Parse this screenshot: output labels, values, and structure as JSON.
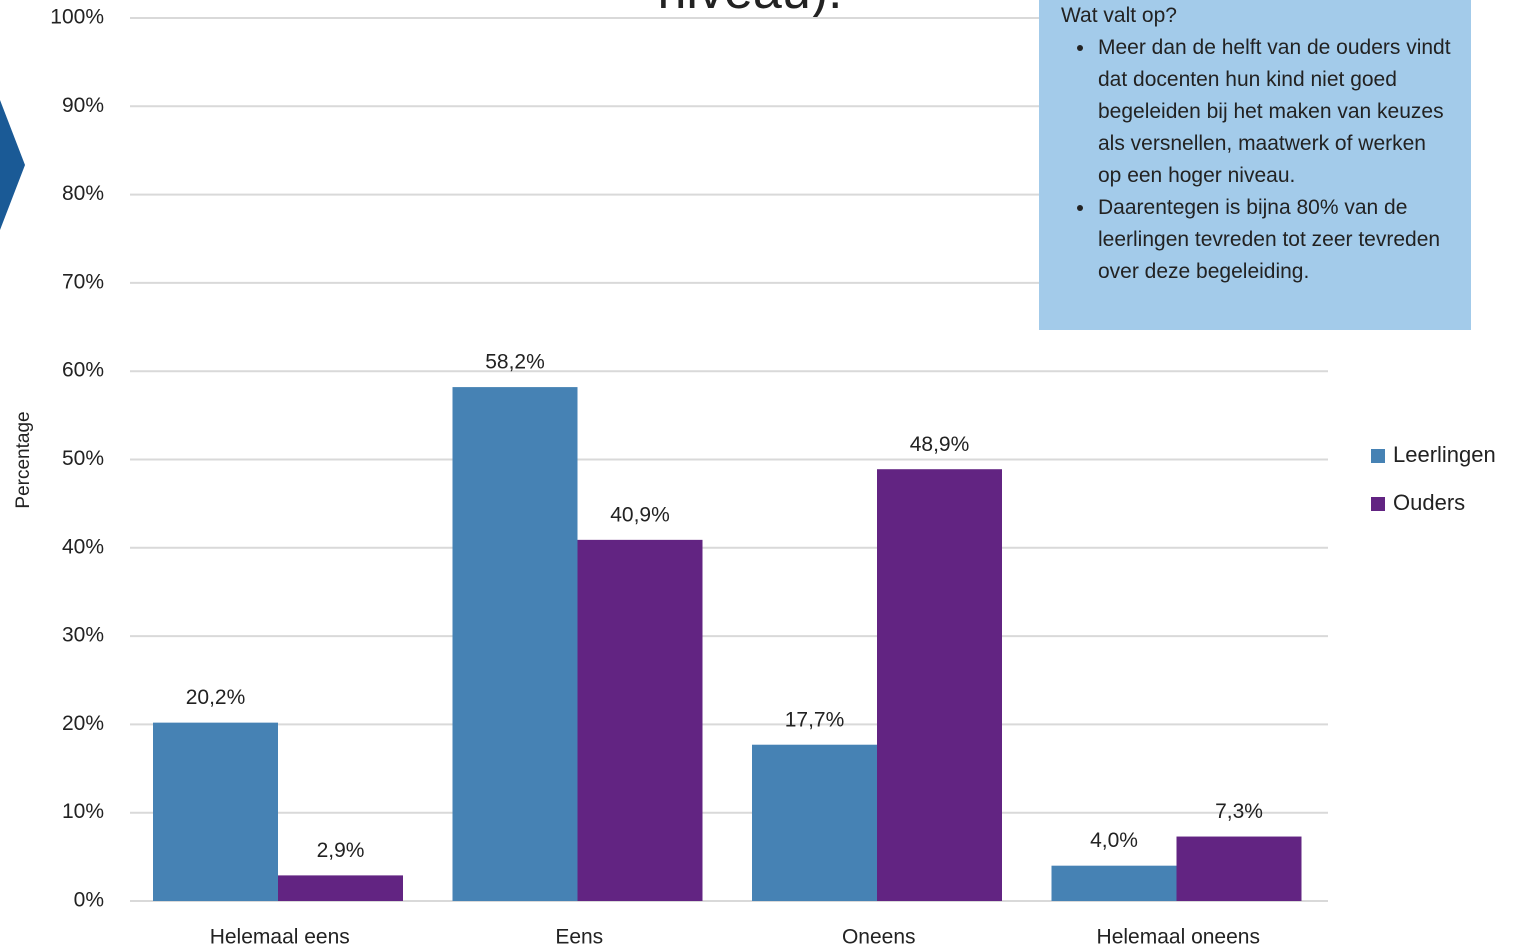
{
  "chart_data": {
    "type": "bar",
    "title": "niveau).",
    "ylabel": "Percentage",
    "categories": [
      "Helemaal eens",
      "Eens",
      "Oneens",
      "Helemaal oneens"
    ],
    "series": [
      {
        "name": "Leerlingen",
        "color": "#4682b4",
        "values": [
          20.2,
          58.2,
          17.7,
          4.0
        ],
        "value_labels": [
          "20,2%",
          "58,2%",
          "17,7%",
          "4,0%"
        ]
      },
      {
        "name": "Ouders",
        "color": "#622482",
        "values": [
          2.9,
          40.9,
          48.9,
          7.3
        ],
        "value_labels": [
          "2,9%",
          "40,9%",
          "48,9%",
          "7,3%"
        ]
      }
    ],
    "ylim": [
      0,
      100
    ],
    "yticks": [
      {
        "value": 0,
        "label": "0%"
      },
      {
        "value": 10,
        "label": "10%"
      },
      {
        "value": 20,
        "label": "20%"
      },
      {
        "value": 30,
        "label": "30%"
      },
      {
        "value": 40,
        "label": "40%"
      },
      {
        "value": 50,
        "label": "50%"
      },
      {
        "value": 60,
        "label": "60%"
      },
      {
        "value": 70,
        "label": "70%"
      },
      {
        "value": 80,
        "label": "80%"
      },
      {
        "value": 90,
        "label": "90%"
      },
      {
        "value": 100,
        "label": "100%"
      }
    ],
    "grid": true,
    "legend": "right",
    "annotation": {
      "title": "Wat valt op?",
      "bullets": [
        "Meer dan de helft van de ouders vindt dat docenten hun kind niet goed begeleiden bij het maken van keuzes als versnellen, maatwerk of werken op een hoger niveau.",
        "Daarentegen is bijna 80% van de leerlingen tevreden tot zeer tevreden over deze begeleiding."
      ]
    }
  }
}
